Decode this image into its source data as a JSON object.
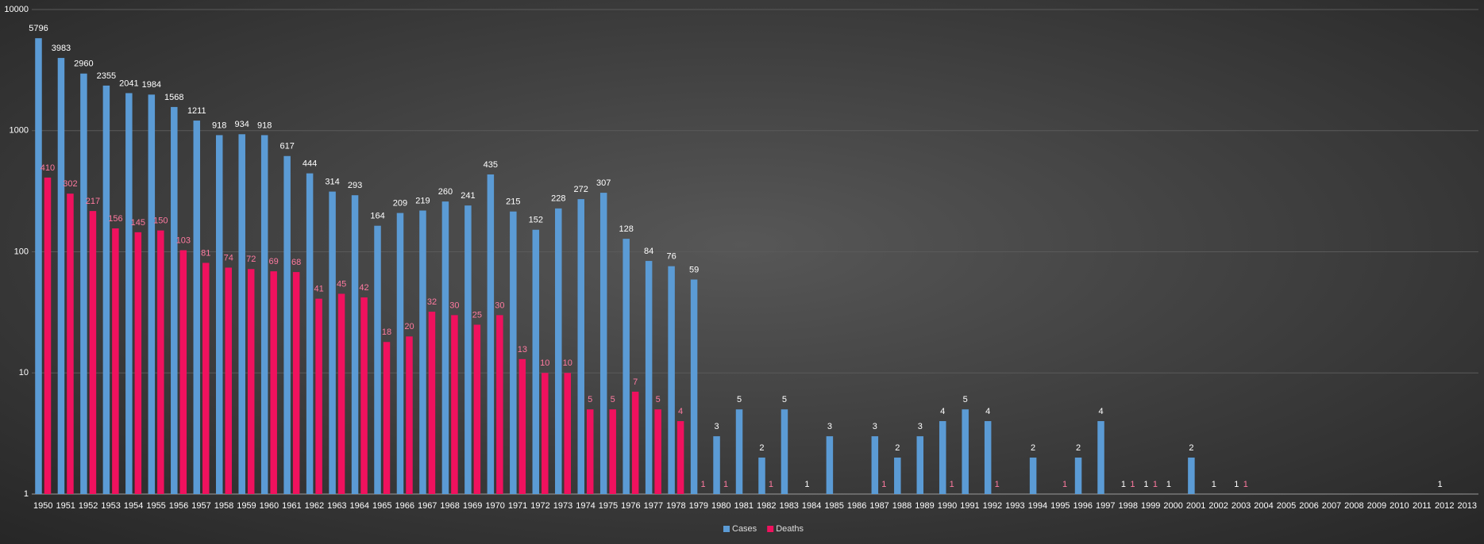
{
  "chart_data": {
    "type": "bar",
    "log_scale": true,
    "grid": true,
    "legend": "bottom",
    "categories": [
      "1950",
      "1951",
      "1952",
      "1953",
      "1954",
      "1955",
      "1956",
      "1957",
      "1958",
      "1959",
      "1960",
      "1961",
      "1962",
      "1963",
      "1964",
      "1965",
      "1966",
      "1967",
      "1968",
      "1969",
      "1970",
      "1971",
      "1972",
      "1973",
      "1974",
      "1975",
      "1976",
      "1977",
      "1978",
      "1979",
      "1980",
      "1981",
      "1982",
      "1983",
      "1984",
      "1985",
      "1986",
      "1987",
      "1988",
      "1989",
      "1990",
      "1991",
      "1992",
      "1993",
      "1994",
      "1995",
      "1996",
      "1997",
      "1998",
      "1999",
      "2000",
      "2001",
      "2002",
      "2003",
      "2004",
      "2005",
      "2006",
      "2007",
      "2008",
      "2009",
      "2010",
      "2011",
      "2012",
      "2013"
    ],
    "series": [
      {
        "name": "Cases",
        "color": "#5b9bd5",
        "label_color": "#ffffff",
        "values": [
          5796,
          3983,
          2960,
          2355,
          2041,
          1984,
          1568,
          1211,
          918,
          934,
          918,
          617,
          444,
          314,
          293,
          164,
          209,
          219,
          260,
          241,
          435,
          215,
          152,
          228,
          272,
          307,
          128,
          84,
          76,
          59,
          3,
          5,
          2,
          5,
          1,
          3,
          null,
          3,
          2,
          3,
          4,
          5,
          4,
          null,
          2,
          null,
          2,
          4,
          1,
          1,
          1,
          2,
          1,
          1,
          null,
          null,
          null,
          null,
          null,
          null,
          null,
          null,
          1,
          null
        ]
      },
      {
        "name": "Deaths",
        "color": "#f0115e",
        "label_color": "#ff7aa0",
        "values": [
          410,
          302,
          217,
          156,
          145,
          150,
          103,
          81,
          74,
          72,
          69,
          68,
          41,
          45,
          42,
          18,
          20,
          32,
          30,
          25,
          30,
          13,
          10,
          10,
          5,
          5,
          7,
          5,
          4,
          1,
          1,
          null,
          1,
          null,
          null,
          null,
          null,
          1,
          null,
          null,
          1,
          null,
          1,
          null,
          null,
          1,
          null,
          null,
          1,
          1,
          null,
          null,
          null,
          1,
          null,
          null,
          null,
          null,
          null,
          null,
          null,
          null,
          null,
          null
        ]
      }
    ],
    "ylim": [
      1,
      10000
    ],
    "yticks": [
      1,
      10,
      100,
      1000,
      10000
    ]
  }
}
